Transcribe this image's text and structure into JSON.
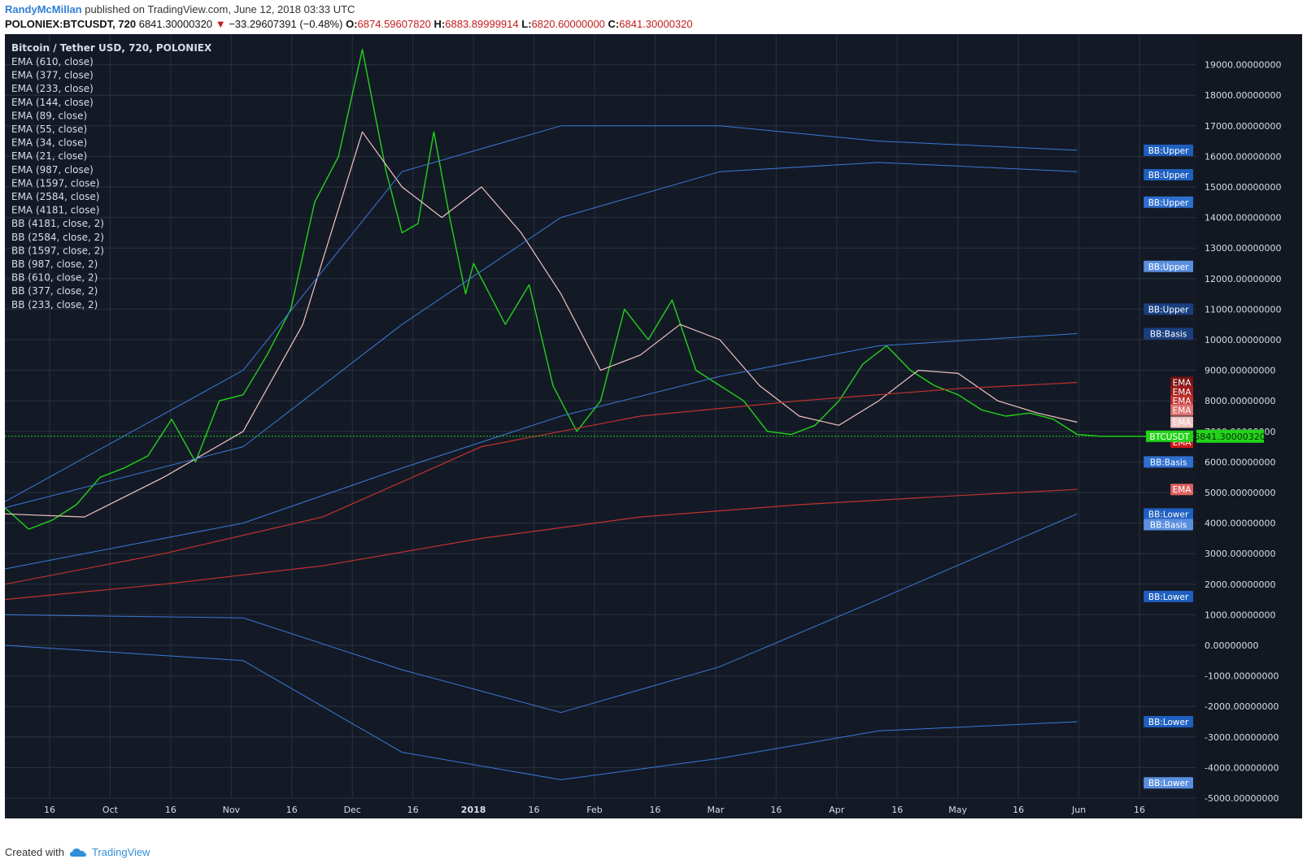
{
  "header": {
    "author": "RandyMcMillan",
    "published": "published on TradingView.com, June 12, 2018 03:33 UTC"
  },
  "symbol_bar": {
    "symbol": "POLONIEX:BTCUSDT, 720",
    "price": "6841.30000320",
    "change": "−33.29607391 (−0.48%)",
    "o_label": "O:",
    "o_value": "6874.59607820",
    "h_label": "H:",
    "h_value": "6883.89999914",
    "l_label": "L:",
    "l_value": "6820.60000000",
    "c_label": "C:",
    "c_value": "6841.30000320"
  },
  "footer": {
    "created_with": "Created with",
    "brand": "TradingView"
  },
  "colors": {
    "background": "#131a26",
    "price_line": "#22d31a",
    "ema_fast": "#f2c3c0",
    "ema_slow": "#c2322e",
    "bb_line": "#3c78d8",
    "price_marker": "#22d31a",
    "grid": "#2a3140"
  },
  "chart_data": {
    "type": "line",
    "title": "Bitcoin / Tether USD, 720, POLONIEX",
    "legend": [
      "EMA (610, close)",
      "EMA (377, close)",
      "EMA (233, close)",
      "EMA (144, close)",
      "EMA (89, close)",
      "EMA (55, close)",
      "EMA (34, close)",
      "EMA (21, close)",
      "EMA (987, close)",
      "EMA (1597, close)",
      "EMA (2584, close)",
      "EMA (4181, close)",
      "BB (4181, close, 2)",
      "BB (2584, close, 2)",
      "BB (1597, close, 2)",
      "BB (987, close, 2)",
      "BB (610, close, 2)",
      "BB (377, close, 2)",
      "BB (233, close, 2)"
    ],
    "x_ticks": [
      "16",
      "Oct",
      "16",
      "Nov",
      "16",
      "Dec",
      "16",
      "2018",
      "16",
      "Feb",
      "16",
      "Mar",
      "16",
      "Apr",
      "16",
      "May",
      "16",
      "Jun",
      "16"
    ],
    "y_ticks": [
      "19000.00000000",
      "18000.00000000",
      "17000.00000000",
      "16000.00000000",
      "15000.00000000",
      "14000.00000000",
      "13000.00000000",
      "12000.00000000",
      "11000.00000000",
      "10000.00000000",
      "9000.00000000",
      "8000.00000000",
      "7000.00000000",
      "6000.00000000",
      "5000.00000000",
      "4000.00000000",
      "3000.00000000",
      "2000.00000000",
      "1000.00000000",
      "0.00000000",
      "-1000.00000000",
      "-2000.00000000",
      "-3000.00000000",
      "-4000.00000000",
      "-5000.00000000"
    ],
    "ylim": [
      -5000,
      20000
    ],
    "grid": true,
    "last_price": {
      "label": "BTCUSDT",
      "value": "6841.30000320",
      "y": 6841.3
    },
    "series": [
      {
        "role": "price",
        "x": [
          0,
          6,
          12,
          18,
          24,
          30,
          36,
          42,
          48,
          54,
          60,
          66,
          72,
          78,
          84,
          90,
          96,
          100,
          104,
          108,
          112,
          116,
          118,
          122,
          126,
          132,
          138,
          144,
          150,
          156,
          162,
          168,
          174,
          180,
          186,
          192,
          198,
          204,
          210,
          216,
          222,
          228,
          234,
          240,
          246,
          252,
          258,
          264,
          270,
          276,
          282,
          288
        ],
        "values": [
          4500,
          3800,
          4100,
          4600,
          5500,
          5800,
          6200,
          7400,
          6000,
          8000,
          8200,
          9500,
          11000,
          14500,
          16000,
          19500,
          15500,
          13500,
          13800,
          16800,
          14000,
          11500,
          12500,
          11500,
          10500,
          11800,
          8500,
          7000,
          8000,
          11000,
          10000,
          11300,
          9000,
          8500,
          8000,
          7000,
          6900,
          7200,
          8000,
          9200,
          9800,
          9000,
          8500,
          8200,
          7700,
          7500,
          7600,
          7400,
          6900,
          6841,
          6841,
          6841
        ]
      },
      {
        "role": "ema-fast",
        "name": "EMA (21, close)",
        "x": [
          0,
          20,
          40,
          60,
          75,
          90,
          100,
          110,
          120,
          130,
          140,
          150,
          160,
          170,
          180,
          190,
          200,
          210,
          220,
          230,
          240,
          250,
          260,
          270
        ],
        "values": [
          4300,
          4200,
          5500,
          7000,
          10500,
          16800,
          15000,
          14000,
          15000,
          13500,
          11500,
          9000,
          9500,
          10500,
          10000,
          8500,
          7500,
          7200,
          8000,
          9000,
          8900,
          8000,
          7600,
          7300
        ]
      },
      {
        "role": "ema-slow",
        "name": "EMA (987, close)",
        "x": [
          0,
          40,
          80,
          120,
          160,
          200,
          240,
          270
        ],
        "values": [
          2000,
          3000,
          4200,
          6500,
          7500,
          8000,
          8400,
          8600
        ]
      },
      {
        "role": "ema-slow",
        "name": "EMA (4181, close)",
        "x": [
          0,
          40,
          80,
          120,
          160,
          200,
          240,
          270
        ],
        "values": [
          1500,
          2000,
          2600,
          3500,
          4200,
          4600,
          4900,
          5100
        ]
      },
      {
        "role": "bb",
        "name": "BB:Upper",
        "x": [
          0,
          60,
          100,
          140,
          180,
          220,
          270
        ],
        "values": [
          4700,
          9000,
          15500,
          17000,
          17000,
          16500,
          16200
        ]
      },
      {
        "role": "bb",
        "name": "BB:Upper",
        "x": [
          0,
          60,
          100,
          140,
          180,
          220,
          270
        ],
        "values": [
          4500,
          6500,
          10500,
          14000,
          15500,
          15800,
          15500
        ]
      },
      {
        "role": "bb",
        "name": "BB:Basis",
        "x": [
          0,
          60,
          100,
          140,
          180,
          220,
          270
        ],
        "values": [
          2500,
          4000,
          5800,
          7500,
          8800,
          9800,
          10200
        ]
      },
      {
        "role": "bb",
        "name": "BB:Lower",
        "x": [
          0,
          60,
          100,
          140,
          180,
          220,
          270
        ],
        "values": [
          1000,
          900,
          -800,
          -2200,
          -700,
          1500,
          4300
        ]
      },
      {
        "role": "bb",
        "name": "BB:Lower",
        "x": [
          0,
          60,
          100,
          140,
          180,
          220,
          270
        ],
        "values": [
          0,
          -500,
          -3500,
          -4400,
          -3700,
          -2800,
          -2500
        ]
      }
    ],
    "right_tags": [
      {
        "label": "BB:Upper",
        "y": 16200,
        "color": "#1f5fc0"
      },
      {
        "label": "BB:Upper",
        "y": 15400,
        "color": "#1f5fc0"
      },
      {
        "label": "BB:Upper",
        "y": 14500,
        "color": "#2f6fd0"
      },
      {
        "label": "BB:Upper",
        "y": 12400,
        "color": "#5a8fe0"
      },
      {
        "label": "BB:Upper",
        "y": 11000,
        "color": "#1a3f80"
      },
      {
        "label": "BB:Basis",
        "y": 10200,
        "color": "#1a3f80"
      },
      {
        "label": "EMA",
        "y": 8600,
        "color": "#7a1212"
      },
      {
        "label": "EMA",
        "y": 8300,
        "color": "#a01a1a"
      },
      {
        "label": "EMA",
        "y": 8000,
        "color": "#c2322e"
      },
      {
        "label": "EMA",
        "y": 7700,
        "color": "#e07070"
      },
      {
        "label": "EMA",
        "y": 7300,
        "color": "#f2c3c0"
      },
      {
        "label": "EMA",
        "y": 6650,
        "color": "#d01818"
      },
      {
        "label": "BB:Basis",
        "y": 6000,
        "color": "#2f6fd0"
      },
      {
        "label": "EMA",
        "y": 5100,
        "color": "#e06060"
      },
      {
        "label": "BB:Lower",
        "y": 4300,
        "color": "#1f5fc0"
      },
      {
        "label": "BB:Basis",
        "y": 3950,
        "color": "#5a8fe0"
      },
      {
        "label": "BB:Lower",
        "y": 1600,
        "color": "#1f5fc0"
      },
      {
        "label": "BB:Lower",
        "y": -2500,
        "color": "#1f5fc0"
      },
      {
        "label": "BB:Lower",
        "y": -4500,
        "color": "#5a8fe0"
      }
    ]
  }
}
